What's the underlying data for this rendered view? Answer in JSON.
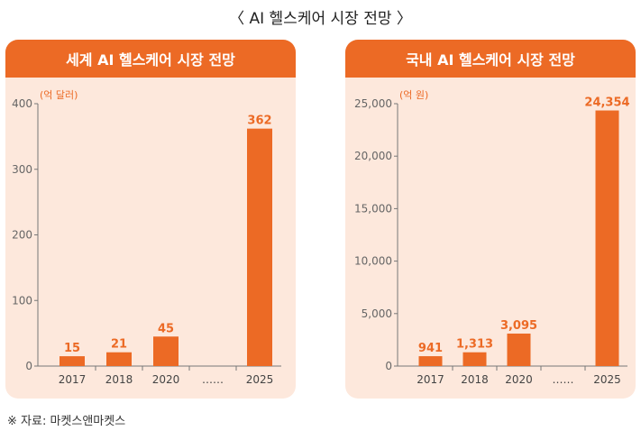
{
  "title": "〈 AI 헬스케어 시장 전망 〉",
  "source": "※ 자료: 마켓스앤마켓스",
  "colors": {
    "bar": "#ec6a25",
    "panel_bg": "#fde8dc",
    "header": "#ec6a25",
    "axis": "#777777",
    "unit": "#ec6a25"
  },
  "chart_data": [
    {
      "type": "bar",
      "title": "세계 AI 헬스케어 시장 전망",
      "unit": "(억 달러)",
      "categories": [
        "2017",
        "2018",
        "2020",
        "……",
        "2025"
      ],
      "values": [
        15,
        21,
        45,
        null,
        362
      ],
      "value_labels": [
        "15",
        "21",
        "45",
        "",
        "362"
      ],
      "ylim": [
        0,
        400
      ],
      "yticks": [
        0,
        100,
        200,
        300,
        400
      ],
      "ytick_labels": [
        "0",
        "100",
        "200",
        "300",
        "400"
      ],
      "grid": false
    },
    {
      "type": "bar",
      "title": "국내 AI 헬스케어 시장 전망",
      "unit": "(억 원)",
      "categories": [
        "2017",
        "2018",
        "2020",
        "……",
        "2025"
      ],
      "values": [
        941,
        1313,
        3095,
        null,
        24354
      ],
      "value_labels": [
        "941",
        "1,313",
        "3,095",
        "",
        "24,354"
      ],
      "ylim": [
        0,
        25000
      ],
      "yticks": [
        0,
        5000,
        10000,
        15000,
        20000,
        25000
      ],
      "ytick_labels": [
        "0",
        "5,000",
        "10,000",
        "15,000",
        "20,000",
        "25,000"
      ],
      "grid": false
    }
  ]
}
